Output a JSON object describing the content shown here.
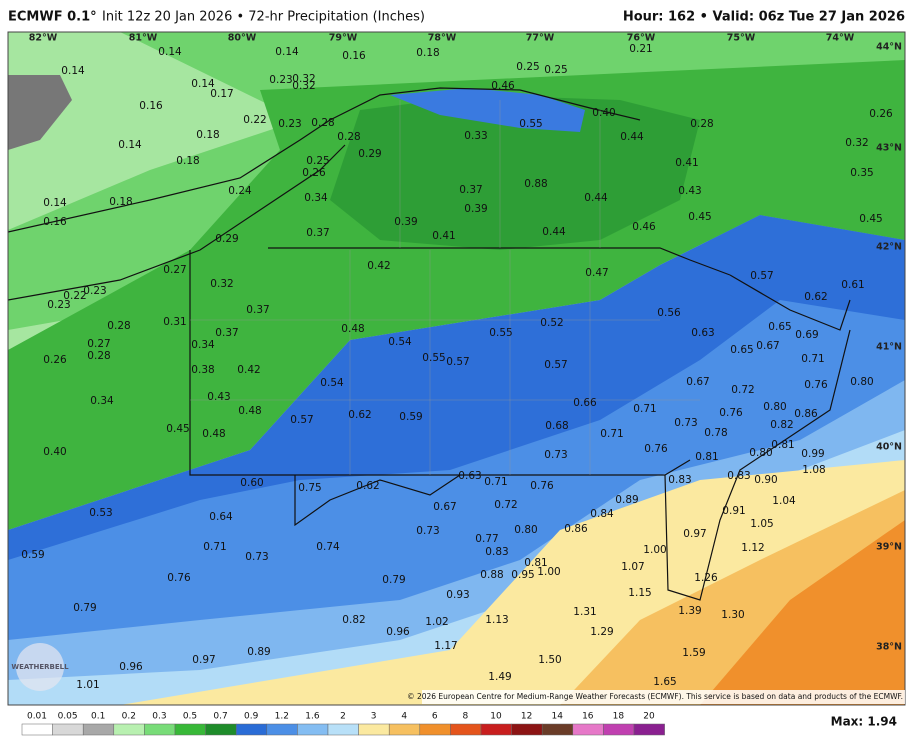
{
  "header": {
    "model": "ECMWF 0.1°",
    "title": "Init 12z 20 Jan 2026 • 72-hr Precipitation (Inches)",
    "valid": "Hour: 162 • Valid: 06z Tue 27 Jan 2026"
  },
  "lon_labels": [
    "82°W",
    "81°W",
    "80°W",
    "79°W",
    "78°W",
    "77°W",
    "76°W",
    "75°W",
    "74°W"
  ],
  "lat_labels": [
    "44°N",
    "43°N",
    "42°N",
    "41°N",
    "40°N",
    "39°N",
    "38°N"
  ],
  "map_labels": [
    "0.14",
    "0.14",
    "0.14",
    "0.16",
    "0.18",
    "0.25",
    "0.25",
    "0.21",
    "0.14",
    "0.17",
    "0.23",
    "0.32",
    "0.32",
    "0.46",
    "0.16",
    "0.22",
    "0.23",
    "0.28",
    "0.55",
    "0.40",
    "0.28",
    "0.26",
    "0.18",
    "0.14",
    "0.28",
    "0.33",
    "0.44",
    "0.32",
    "0.29",
    "0.25",
    "0.41",
    "0.18",
    "0.26",
    "0.35",
    "0.24",
    "0.37",
    "0.88",
    "0.43",
    "0.44",
    "0.14",
    "0.18",
    "0.34",
    "0.39",
    "0.45",
    "0.45",
    "0.16",
    "0.39",
    "0.37",
    "0.41",
    "0.44",
    "0.46",
    "0.29",
    "0.27",
    "0.42",
    "0.47",
    "0.57",
    "0.61",
    "0.22",
    "0.23",
    "0.23",
    "0.32",
    "0.62",
    "0.37",
    "0.56",
    "0.28",
    "0.31",
    "0.48",
    "0.55",
    "0.52",
    "0.65",
    "0.69",
    "0.37",
    "0.63",
    "0.27",
    "0.54",
    "0.34",
    "0.67",
    "0.65",
    "0.28",
    "0.26",
    "0.55",
    "0.57",
    "0.57",
    "0.71",
    "0.38",
    "0.42",
    "0.54",
    "0.67",
    "0.72",
    "0.76",
    "0.80",
    "0.43",
    "0.34",
    "0.66",
    "0.71",
    "0.80",
    "0.86",
    "0.48",
    "0.62",
    "0.59",
    "0.57",
    "0.73",
    "0.76",
    "0.82",
    "0.45",
    "0.68",
    "0.71",
    "0.78",
    "0.48",
    "0.40",
    "0.81",
    "0.76",
    "0.73",
    "0.81",
    "0.80",
    "0.99",
    "1.08",
    "0.63",
    "0.71",
    "0.83",
    "0.83",
    "0.90",
    "0.60",
    "0.75",
    "0.62",
    "0.76",
    "1.04",
    "0.72",
    "0.67",
    "0.89",
    "0.53",
    "0.84",
    "0.91",
    "0.64",
    "0.73",
    "0.86",
    "0.80",
    "1.05",
    "0.97",
    "0.77",
    "0.74",
    "0.71",
    "1.12",
    "0.59",
    "1.00",
    "0.73",
    "0.83",
    "0.81",
    "1.00",
    "1.07",
    "0.95",
    "0.88",
    "0.79",
    "0.76",
    "1.26",
    "1.15",
    "0.93",
    "1.31",
    "1.39",
    "1.30",
    "0.79",
    "1.13",
    "0.82",
    "1.02",
    "0.96",
    "1.29",
    "1.17",
    "0.89",
    "1.59",
    "0.96",
    "0.97",
    "1.50",
    "1.49",
    "1.65",
    "1.01"
  ],
  "logo": "WEATHERBELL",
  "copyright": "© 2026 European Centre for Medium-Range Weather Forecasts (ECMWF). This service is based on data and products of the ECMWF.",
  "legend": {
    "ticks": [
      "0.01",
      "0.05",
      "0.1",
      "0.2",
      "0.3",
      "0.5",
      "0.7",
      "0.9",
      "1.2",
      "1.6",
      "2",
      "3",
      "4",
      "6",
      "8",
      "10",
      "12",
      "14",
      "16",
      "18",
      "20"
    ],
    "max": "Max: 1.94"
  }
}
